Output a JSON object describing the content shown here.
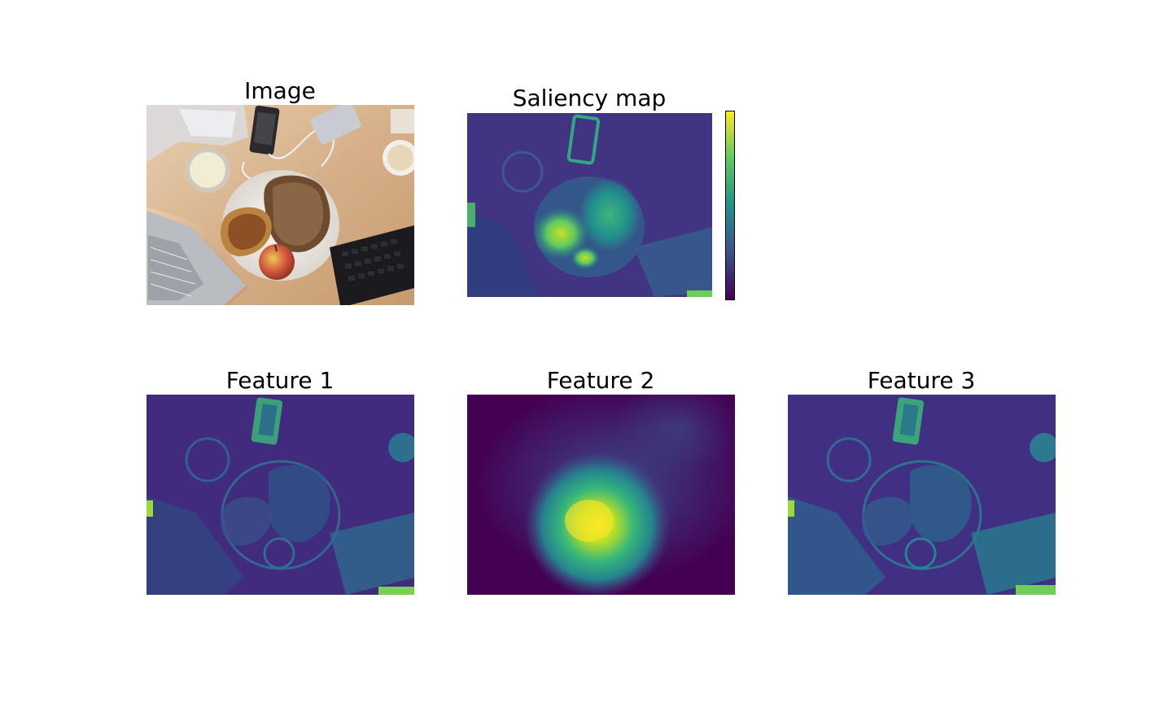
{
  "panels": {
    "image": {
      "title": "Image"
    },
    "saliency": {
      "title": "Saliency map"
    },
    "feature1": {
      "title": "Feature 1"
    },
    "feature2": {
      "title": "Feature 2"
    },
    "feature3": {
      "title": "Feature 3"
    }
  },
  "colormap": {
    "name": "viridis",
    "stops": [
      "#440154",
      "#3b528b",
      "#21918c",
      "#5ec962",
      "#fde725"
    ]
  },
  "colors": {
    "viridis_dark": "#440154",
    "viridis_blue": "#3b528b",
    "viridis_teal": "#21918c",
    "viridis_green": "#5ec962",
    "viridis_yellow": "#fde725",
    "table_wood": "#d9b894",
    "plate": "#f3f0ea",
    "bread": "#8a5a34",
    "apple": "#c9533f",
    "keyboard": "#1b1b1f",
    "laptop": "#b9bcc1"
  }
}
